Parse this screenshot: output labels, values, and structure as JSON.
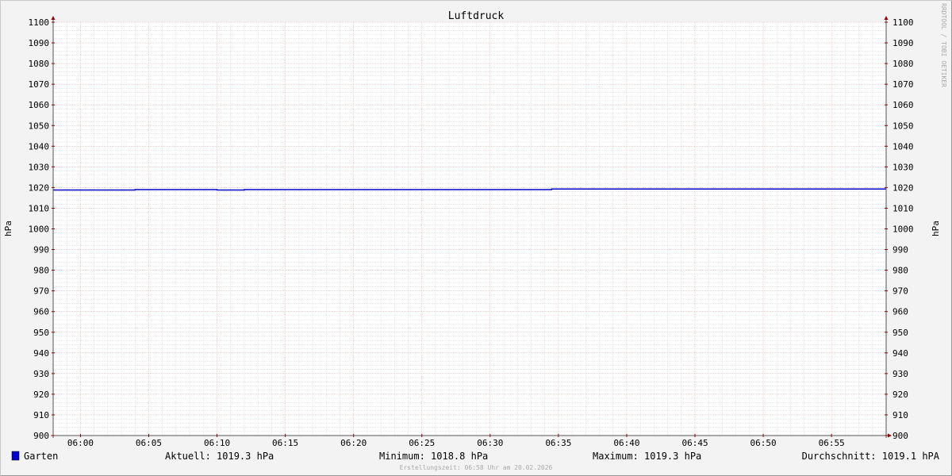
{
  "chart_data": {
    "type": "line",
    "title": "Luftdruck",
    "ylabel": "hPa",
    "ylabel_right": "hPa",
    "ylim": [
      900,
      1100
    ],
    "yticks": [
      900,
      910,
      920,
      930,
      940,
      950,
      960,
      970,
      980,
      990,
      1000,
      1010,
      1020,
      1030,
      1040,
      1050,
      1060,
      1070,
      1080,
      1090,
      1100
    ],
    "xlim": [
      "05:58",
      "06:59"
    ],
    "xticks": [
      "06:00",
      "06:05",
      "06:10",
      "06:15",
      "06:20",
      "06:25",
      "06:30",
      "06:35",
      "06:40",
      "06:45",
      "06:50",
      "06:55"
    ],
    "grid": true,
    "series": [
      {
        "name": "Garten",
        "color": "#0000cc",
        "step": true,
        "points": [
          {
            "x": "05:58",
            "y": 1018.8
          },
          {
            "x": "06:04",
            "y": 1019.0
          },
          {
            "x": "06:10",
            "y": 1018.8
          },
          {
            "x": "06:12",
            "y": 1019.0
          },
          {
            "x": "06:34.5",
            "y": 1019.3
          },
          {
            "x": "06:59",
            "y": 1019.3
          }
        ]
      }
    ],
    "legend": {
      "series_name": "Garten",
      "current": "Aktuell: 1019.3 hPa",
      "minimum": "Minimum: 1018.8 hPa",
      "maximum": "Maximum: 1019.3 hPa",
      "average": "Durchschnitt: 1019.1 hPA"
    },
    "footer": "Erstellungszeit: 06:58 Uhr am 20.02.2026",
    "watermark": "RRDTOOL / TOBI OETIKER"
  }
}
